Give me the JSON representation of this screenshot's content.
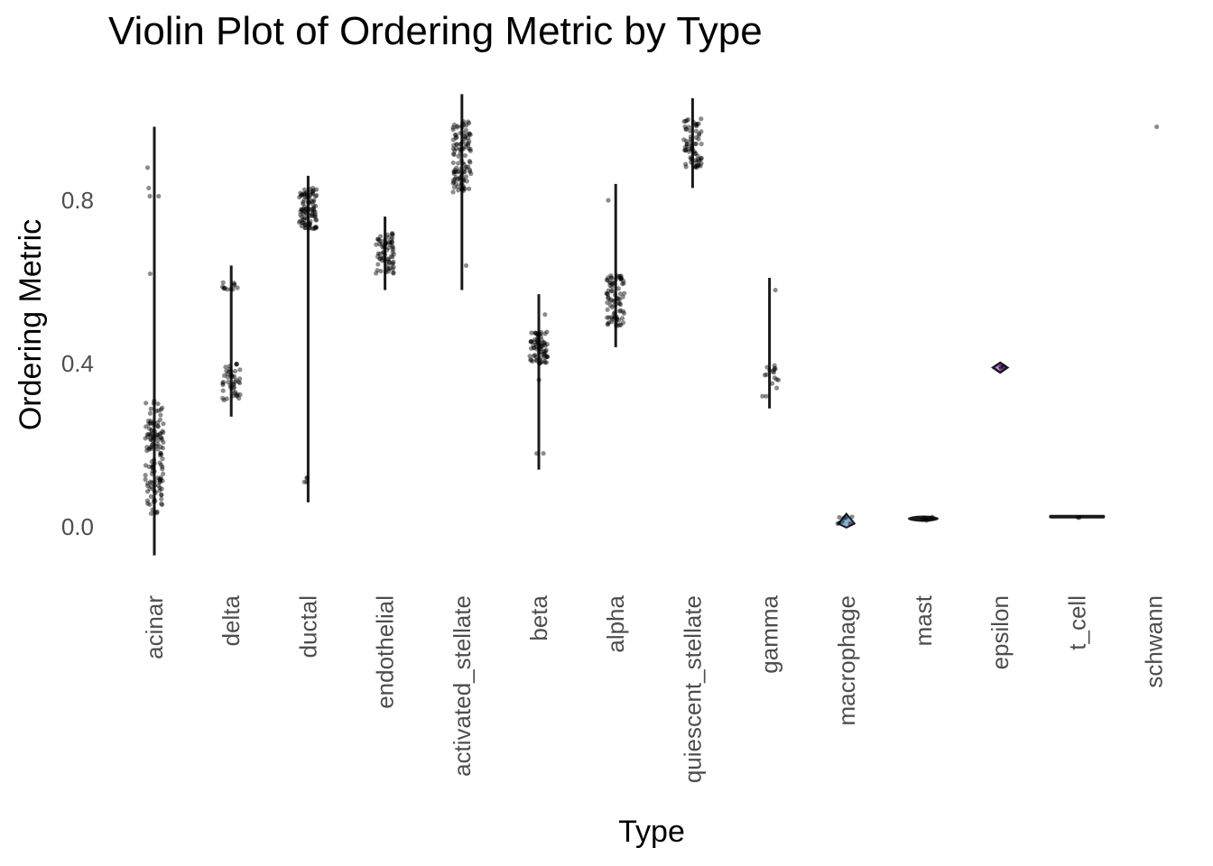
{
  "chart_data": {
    "type": "violin",
    "title": "Violin Plot of Ordering Metric by Type",
    "xlabel": "Type",
    "ylabel": "Ordering Metric",
    "ylim": [
      -0.08,
      1.08
    ],
    "yticks": [
      0.0,
      0.4,
      0.8
    ],
    "ytick_labels": [
      "0.0",
      "0.4",
      "0.8"
    ],
    "grid": false,
    "categories": [
      "acinar",
      "delta",
      "ductal",
      "endothelial",
      "activated_stellate",
      "beta",
      "alpha",
      "quiescent_stellate",
      "gamma",
      "macrophage",
      "mast",
      "epsilon",
      "t_cell",
      "schwann"
    ],
    "groups": [
      {
        "name": "acinar",
        "min": -0.07,
        "max": 0.98,
        "clusters": [
          [
            0.03,
            0.31,
            130
          ]
        ],
        "outliers": [
          0.81,
          0.81,
          0.83,
          0.88,
          0.62
        ]
      },
      {
        "name": "delta",
        "min": 0.27,
        "max": 0.64,
        "clusters": [
          [
            0.31,
            0.4,
            45
          ],
          [
            0.58,
            0.6,
            12
          ]
        ],
        "outliers": []
      },
      {
        "name": "ductal",
        "min": 0.06,
        "max": 0.86,
        "clusters": [
          [
            0.73,
            0.83,
            95
          ]
        ],
        "outliers": [
          0.12,
          0.12,
          0.11,
          0.11
        ]
      },
      {
        "name": "endothelial",
        "min": 0.58,
        "max": 0.76,
        "clusters": [
          [
            0.62,
            0.72,
            70
          ]
        ],
        "outliers": []
      },
      {
        "name": "activated_stellate",
        "min": 0.58,
        "max": 1.06,
        "clusters": [
          [
            0.82,
            1.0,
            110
          ]
        ],
        "outliers": [
          0.64
        ]
      },
      {
        "name": "beta",
        "min": 0.14,
        "max": 0.57,
        "clusters": [
          [
            0.4,
            0.48,
            75
          ]
        ],
        "outliers": [
          0.52,
          0.36,
          0.18,
          0.18
        ]
      },
      {
        "name": "alpha",
        "min": 0.44,
        "max": 0.84,
        "clusters": [
          [
            0.49,
            0.62,
            80
          ]
        ],
        "outliers": [
          0.8
        ]
      },
      {
        "name": "quiescent_stellate",
        "min": 0.83,
        "max": 1.05,
        "clusters": [
          [
            0.88,
            1.0,
            70
          ]
        ],
        "outliers": []
      },
      {
        "name": "gamma",
        "min": 0.29,
        "max": 0.61,
        "clusters": [
          [
            0.35,
            0.4,
            14
          ]
        ],
        "outliers": [
          0.58,
          0.32,
          0.32,
          0.34
        ]
      },
      {
        "name": "macrophage",
        "min": 0.0,
        "max": 0.03,
        "clusters": [
          [
            0.0,
            0.03,
            8
          ]
        ],
        "outliers": []
      },
      {
        "name": "mast",
        "min": 0.015,
        "max": 0.025,
        "clusters": [
          [
            0.015,
            0.025,
            6
          ]
        ],
        "outliers": []
      },
      {
        "name": "epsilon",
        "min": 0.38,
        "max": 0.4,
        "clusters": [
          [
            0.385,
            0.395,
            3
          ]
        ],
        "outliers": []
      },
      {
        "name": "t_cell",
        "min": 0.02,
        "max": 0.025,
        "clusters": [
          [
            0.022,
            0.024,
            2
          ]
        ],
        "outliers": []
      },
      {
        "name": "schwann",
        "min": 0.98,
        "max": 0.98,
        "clusters": [],
        "outliers": [
          0.98
        ]
      }
    ],
    "colors": {
      "points": "#000000",
      "violin": "#1a1a1a",
      "epsilon_fill": "#c77cff",
      "macrophage_fill": "#7fb2d5"
    }
  }
}
